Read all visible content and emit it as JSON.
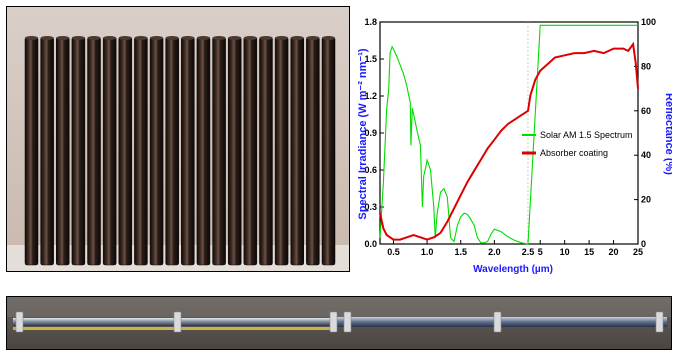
{
  "figure": {
    "panel_tubes": {
      "tube_count": 20
    },
    "panel_bar": {
      "clamp_count": 6
    }
  },
  "chart_data": {
    "type": "line",
    "title": "",
    "xlabel": "Wavelength (µm)",
    "ylabel_left": "Spectral Irradiance (W m⁻² nm⁻¹)",
    "ylabel_right": "Reflectance (%)",
    "x_ticks_left_segment": [
      "0.5",
      "1.0",
      "1.5",
      "2.0",
      "2.5"
    ],
    "x_ticks_right_segment": [
      "5",
      "10",
      "15",
      "20",
      "25"
    ],
    "x_split": 2.5,
    "xlim": [
      0.3,
      25
    ],
    "ylim_left": [
      0.0,
      1.8
    ],
    "ylim_right": [
      0,
      100
    ],
    "y_ticks_left": [
      "0.0",
      "0.3",
      "0.6",
      "0.9",
      "1.2",
      "1.5",
      "1.8"
    ],
    "y_ticks_right": [
      "0",
      "20",
      "40",
      "60",
      "80",
      "100"
    ],
    "legend_position": "center-right",
    "series": [
      {
        "name": "Solar AM 1.5 Spectrum",
        "axis": "left",
        "color": "#00dd00",
        "x": [
          0.3,
          0.35,
          0.4,
          0.43,
          0.45,
          0.48,
          0.5,
          0.55,
          0.6,
          0.65,
          0.7,
          0.72,
          0.75,
          0.76,
          0.78,
          0.82,
          0.85,
          0.9,
          0.93,
          0.95,
          0.98,
          1.0,
          1.05,
          1.1,
          1.12,
          1.15,
          1.2,
          1.25,
          1.3,
          1.35,
          1.4,
          1.45,
          1.5,
          1.55,
          1.6,
          1.65,
          1.7,
          1.75,
          1.8,
          1.85,
          1.9,
          1.95,
          2.0,
          2.1,
          2.2,
          2.3,
          2.4,
          2.5,
          5,
          10,
          15,
          20,
          25
        ],
        "values": [
          0.05,
          0.5,
          1.1,
          1.25,
          1.55,
          1.6,
          1.58,
          1.52,
          1.45,
          1.38,
          1.28,
          1.22,
          1.15,
          0.8,
          1.1,
          1.0,
          0.92,
          0.8,
          0.3,
          0.55,
          0.62,
          0.68,
          0.6,
          0.3,
          0.05,
          0.25,
          0.42,
          0.45,
          0.38,
          0.05,
          0.02,
          0.15,
          0.22,
          0.25,
          0.24,
          0.2,
          0.15,
          0.05,
          0.01,
          0.01,
          0.02,
          0.08,
          0.12,
          0.1,
          0.06,
          0.03,
          0.01,
          0.0,
          1.8,
          1.8,
          1.8,
          1.8,
          1.8
        ]
      },
      {
        "name": "Absorber coating",
        "axis": "right",
        "color": "#dd0000",
        "x": [
          0.3,
          0.35,
          0.4,
          0.5,
          0.6,
          0.7,
          0.8,
          0.9,
          1.0,
          1.1,
          1.2,
          1.3,
          1.4,
          1.5,
          1.6,
          1.7,
          1.8,
          1.9,
          2.0,
          2.1,
          2.2,
          2.3,
          2.4,
          2.5,
          3,
          4,
          5,
          6,
          7,
          8,
          10,
          12,
          14,
          16,
          18,
          20,
          22,
          23,
          24,
          24.5,
          25
        ],
        "values": [
          14,
          7,
          4,
          2,
          2,
          3,
          4,
          3,
          2,
          3,
          5,
          10,
          16,
          22,
          28,
          33,
          38,
          43,
          47,
          51,
          54,
          56,
          58,
          60,
          67,
          74,
          78,
          80,
          82,
          84,
          85,
          86,
          86,
          87,
          86,
          88,
          88,
          87,
          90,
          82,
          70
        ]
      }
    ]
  }
}
